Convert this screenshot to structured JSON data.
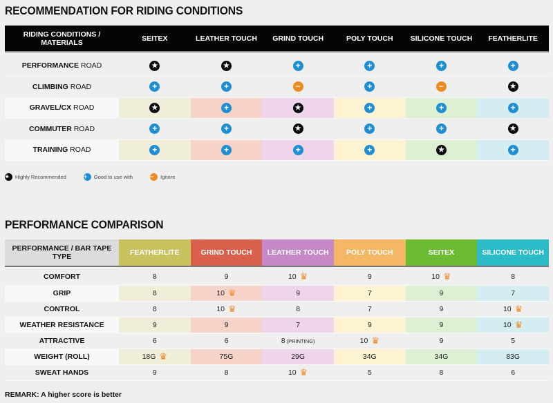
{
  "riding": {
    "title": "RECOMMENDATION FOR RIDING CONDITIONS",
    "corner_header": "RIDING CONDITIONS / MATERIALS",
    "columns": [
      "SEITEX",
      "LEATHER TOUCH",
      "GRIND TOUCH",
      "POLY TOUCH",
      "SILICONE TOUCH",
      "FEATHERLITE"
    ],
    "tints": [
      "#f0eed8",
      "#f6d3c9",
      "#efd5ec",
      "#fdf2d2",
      "#ddf0d4",
      "#d3edf0"
    ],
    "rows": [
      {
        "bold": "PERFORMANCE",
        "suffix": "ROAD",
        "values": [
          "star",
          "star",
          "plus",
          "plus",
          "plus",
          "plus"
        ]
      },
      {
        "bold": "CLIMBING",
        "suffix": "ROAD",
        "values": [
          "plus",
          "plus",
          "minus",
          "plus",
          "minus",
          "star"
        ]
      },
      {
        "bold": "GRAVEL/CX",
        "suffix": "ROAD",
        "values": [
          "star",
          "plus",
          "star",
          "plus",
          "plus",
          "plus"
        ]
      },
      {
        "bold": "COMMUTER",
        "suffix": "ROAD",
        "values": [
          "plus",
          "plus",
          "star",
          "plus",
          "plus",
          "star"
        ]
      },
      {
        "bold": "TRAINING",
        "suffix": "ROAD",
        "values": [
          "plus",
          "plus",
          "plus",
          "plus",
          "star",
          "plus"
        ]
      }
    ],
    "legend": [
      {
        "icon": "star",
        "label": "Highly Recommended"
      },
      {
        "icon": "plus",
        "label": "Good to use with"
      },
      {
        "icon": "minus",
        "label": "Ignore"
      }
    ],
    "icon_colors": {
      "star": "#0a0a0a",
      "plus": "#1f8fd2",
      "minus": "#ee8a1e"
    }
  },
  "performance": {
    "title": "PERFORMANCE COMPARISON",
    "corner_header": "PERFORMANCE / BAR TAPE TYPE",
    "columns": [
      "FEATHERLITE",
      "GRIND TOUCH",
      "LEATHER TOUCH",
      "POLY TOUCH",
      "SEITEX",
      "SILICONE TOUCH"
    ],
    "header_colors": [
      "#c9c35f",
      "#d9604c",
      "#c688c6",
      "#f4b765",
      "#6dbb33",
      "#2cbcc8"
    ],
    "tints": [
      "#f0eed8",
      "#f6d3c9",
      "#efd5ec",
      "#fdf2d2",
      "#ddf0d4",
      "#d3edf0"
    ],
    "rows": [
      {
        "label": "COMFORT",
        "cells": [
          {
            "v": "8"
          },
          {
            "v": "9"
          },
          {
            "v": "10",
            "crown": true
          },
          {
            "v": "9"
          },
          {
            "v": "10",
            "crown": true
          },
          {
            "v": "8"
          }
        ]
      },
      {
        "label": "GRIP",
        "cells": [
          {
            "v": "8"
          },
          {
            "v": "10",
            "crown": true
          },
          {
            "v": "9"
          },
          {
            "v": "7"
          },
          {
            "v": "9"
          },
          {
            "v": "7"
          }
        ]
      },
      {
        "label": "CONTROL",
        "cells": [
          {
            "v": "8"
          },
          {
            "v": "10",
            "crown": true
          },
          {
            "v": "8"
          },
          {
            "v": "7"
          },
          {
            "v": "9"
          },
          {
            "v": "10",
            "crown": true
          }
        ]
      },
      {
        "label": "WEATHER RESISTANCE",
        "cells": [
          {
            "v": "9"
          },
          {
            "v": "9"
          },
          {
            "v": "7"
          },
          {
            "v": "9"
          },
          {
            "v": "9"
          },
          {
            "v": "10",
            "crown": true
          }
        ]
      },
      {
        "label": "ATTRACTIVE",
        "cells": [
          {
            "v": "6"
          },
          {
            "v": "6"
          },
          {
            "v": "8",
            "note": "(PRINTING)"
          },
          {
            "v": "10",
            "crown": true
          },
          {
            "v": "9"
          },
          {
            "v": "5"
          }
        ]
      },
      {
        "label": "WEIGHT (ROLL)",
        "cells": [
          {
            "v": "18G",
            "crown": true
          },
          {
            "v": "75G"
          },
          {
            "v": "29G"
          },
          {
            "v": "34G"
          },
          {
            "v": "34G"
          },
          {
            "v": "83G"
          }
        ]
      },
      {
        "label": "SWEAT HANDS",
        "cells": [
          {
            "v": "9"
          },
          {
            "v": "8"
          },
          {
            "v": "10",
            "crown": true
          },
          {
            "v": "5"
          },
          {
            "v": "8"
          },
          {
            "v": "6"
          }
        ]
      }
    ],
    "remark": "REMARK: A higher score is better"
  }
}
